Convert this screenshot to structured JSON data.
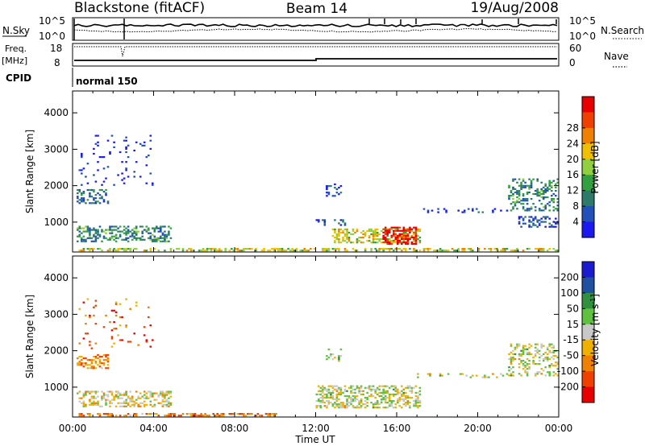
{
  "header": {
    "station": "Blackstone (fitACF)",
    "beam": "Beam 14",
    "date": "19/Aug/2008"
  },
  "panels": {
    "noise": {
      "left_label": "N.Sky",
      "right_label": "N.Search",
      "left_ticks": [
        "10^5",
        "10^0"
      ],
      "right_ticks": [
        "10^5",
        "10^0"
      ]
    },
    "freq": {
      "left_label_line1": "Freq.",
      "left_label_line2": "[MHz]",
      "right_label": "Nave",
      "left_ticks": [
        "18",
        "8"
      ],
      "right_ticks": [
        "60",
        "0"
      ]
    },
    "cpid": {
      "label": "CPID",
      "text": "normal 150"
    }
  },
  "colors": {
    "power_scale": [
      "#1a1af0",
      "#2050b8",
      "#2d7a6a",
      "#30a040",
      "#90d040",
      "#f0c000",
      "#f08000",
      "#f04000",
      "#e80000"
    ],
    "velocity_scale": [
      "#e80000",
      "#f04000",
      "#f08000",
      "#f0b000",
      "#c8c8c8",
      "#60c040",
      "#309040",
      "#2050a0",
      "#1a1ad0"
    ]
  },
  "chart_data": [
    {
      "type": "heatmap",
      "name": "power",
      "ylabel": "Slant Range [km]",
      "xlabel": "",
      "ylim": [
        180,
        4600
      ],
      "xlim": [
        0,
        24
      ],
      "y_ticks": [
        "1000",
        "2000",
        "3000",
        "4000"
      ],
      "x_ticks": [
        "00:00",
        "04:00",
        "08:00",
        "12:00",
        "16:00",
        "20:00",
        "00:00"
      ],
      "colorbar": {
        "label": "Power [dB]",
        "range": [
          0,
          32
        ],
        "ticks": [
          "4",
          "8",
          "12",
          "16",
          "20",
          "24",
          "28"
        ]
      },
      "regions": [
        {
          "t": [
            0.2,
            1.8
          ],
          "r": [
            1500,
            1900
          ],
          "level": 0.25,
          "density": 0.45
        },
        {
          "t": [
            0.2,
            4.8
          ],
          "r": [
            450,
            900
          ],
          "level": 0.3,
          "density": 0.45
        },
        {
          "t": [
            0.3,
            4.0
          ],
          "r": [
            2000,
            3400
          ],
          "level": 0.05,
          "density": 0.05
        },
        {
          "t": [
            0.2,
            24.0
          ],
          "r": [
            200,
            260
          ],
          "level": 0.55,
          "density": 0.5
        },
        {
          "t": [
            12.0,
            13.5
          ],
          "r": [
            900,
            1050
          ],
          "level": 0.1,
          "density": 0.3
        },
        {
          "t": [
            12.5,
            13.2
          ],
          "r": [
            1700,
            2050
          ],
          "level": 0.1,
          "density": 0.3
        },
        {
          "t": [
            12.8,
            17.2
          ],
          "r": [
            420,
            820
          ],
          "level": 0.55,
          "density": 0.5
        },
        {
          "t": [
            15.3,
            17.0
          ],
          "r": [
            380,
            850
          ],
          "level": 0.95,
          "density": 0.55
        },
        {
          "t": [
            17.0,
            22.0
          ],
          "r": [
            1250,
            1350
          ],
          "level": 0.1,
          "density": 0.18
        },
        {
          "t": [
            21.5,
            24.0
          ],
          "r": [
            1300,
            2200
          ],
          "level": 0.3,
          "density": 0.3
        },
        {
          "t": [
            22.0,
            24.0
          ],
          "r": [
            850,
            1150
          ],
          "level": 0.15,
          "density": 0.3
        }
      ]
    },
    {
      "type": "heatmap",
      "name": "velocity",
      "ylabel": "Slant Range [km]",
      "xlabel": "Time UT",
      "ylim": [
        180,
        4600
      ],
      "xlim": [
        0,
        24
      ],
      "y_ticks": [
        "1000",
        "2000",
        "3000",
        "4000"
      ],
      "x_ticks": [
        "00:00",
        "04:00",
        "08:00",
        "12:00",
        "16:00",
        "20:00",
        "00:00"
      ],
      "colorbar": {
        "label": "Velocity [m s^-1]",
        "ticks": [
          "200",
          "100",
          "50",
          "15",
          "-15",
          "-50",
          "-100",
          "-200"
        ]
      },
      "regions": [
        {
          "t": [
            0.2,
            1.8
          ],
          "r": [
            1500,
            1900
          ],
          "level": 0.3,
          "density": 0.45
        },
        {
          "t": [
            0.2,
            4.8
          ],
          "r": [
            450,
            900
          ],
          "level": 0.45,
          "density": 0.45
        },
        {
          "t": [
            0.3,
            4.0
          ],
          "r": [
            2000,
            3400
          ],
          "level": 0.2,
          "density": 0.05
        },
        {
          "t": [
            0.2,
            10.0
          ],
          "r": [
            200,
            260
          ],
          "level": 0.3,
          "density": 0.5
        },
        {
          "t": [
            12.0,
            17.2
          ],
          "r": [
            420,
            1050
          ],
          "level": 0.5,
          "density": 0.5
        },
        {
          "t": [
            12.5,
            13.2
          ],
          "r": [
            1700,
            2050
          ],
          "level": 0.5,
          "density": 0.3
        },
        {
          "t": [
            17.0,
            22.0
          ],
          "r": [
            1250,
            1350
          ],
          "level": 0.5,
          "density": 0.18
        },
        {
          "t": [
            21.5,
            24.0
          ],
          "r": [
            1300,
            2200
          ],
          "level": 0.5,
          "density": 0.3
        }
      ]
    }
  ]
}
